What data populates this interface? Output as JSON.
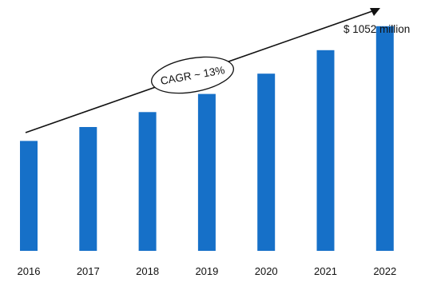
{
  "chart_data": {
    "type": "bar",
    "categories": [
      "2016",
      "2017",
      "2018",
      "2019",
      "2020",
      "2021",
      "2022"
    ],
    "values": [
      515,
      580,
      650,
      735,
      830,
      940,
      1052
    ],
    "ylim": [
      0,
      1100
    ],
    "grid": false,
    "title": "",
    "xlabel": "",
    "ylabel": "",
    "annotations": {
      "cagr": "CAGR ~ 13%",
      "last_value": "$ 1052 million"
    },
    "colors": {
      "bar": "#1670c8",
      "arrow": "#111111"
    }
  }
}
